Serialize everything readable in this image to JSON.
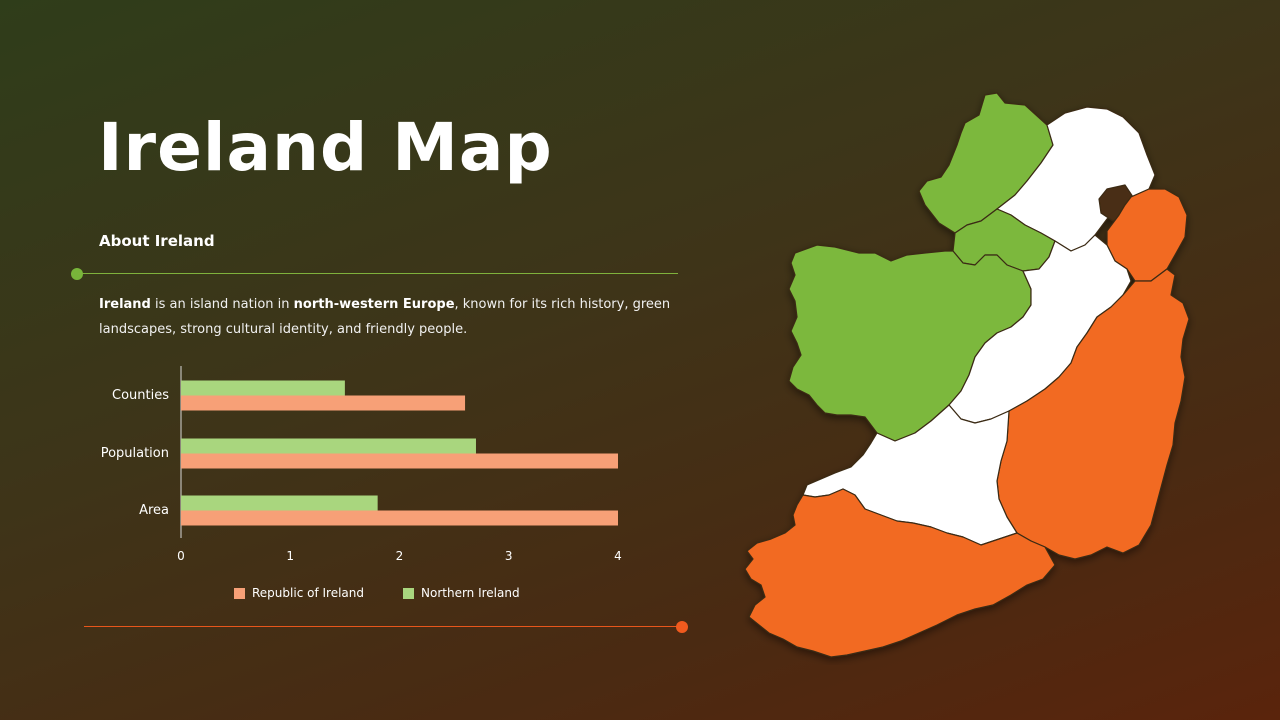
{
  "title": "Ireland Map",
  "subtitle": "About Ireland",
  "description": {
    "part1": "Ireland",
    "part2": " is an island nation in ",
    "part3": "north-western Europe",
    "part4": ", known for its rich history, green landscapes, strong cultural identity, and friendly people."
  },
  "colors": {
    "republic": "#f7a077",
    "northern": "#a9d67e",
    "map_green": "#7cb83e",
    "map_orange": "#f26a21",
    "map_white": "#ffffff"
  },
  "chart_data": {
    "type": "bar",
    "orientation": "horizontal",
    "categories": [
      "Counties",
      "Population",
      "Area"
    ],
    "series": [
      {
        "name": "Republic of Ireland",
        "values": [
          2.6,
          4,
          4
        ]
      },
      {
        "name": "Northern Ireland",
        "values": [
          1.5,
          2.7,
          1.8
        ]
      }
    ],
    "xticks": [
      "0",
      "1",
      "2",
      "3",
      "4"
    ],
    "xlim": [
      0,
      4
    ],
    "legend": "bottom",
    "grid": false
  }
}
